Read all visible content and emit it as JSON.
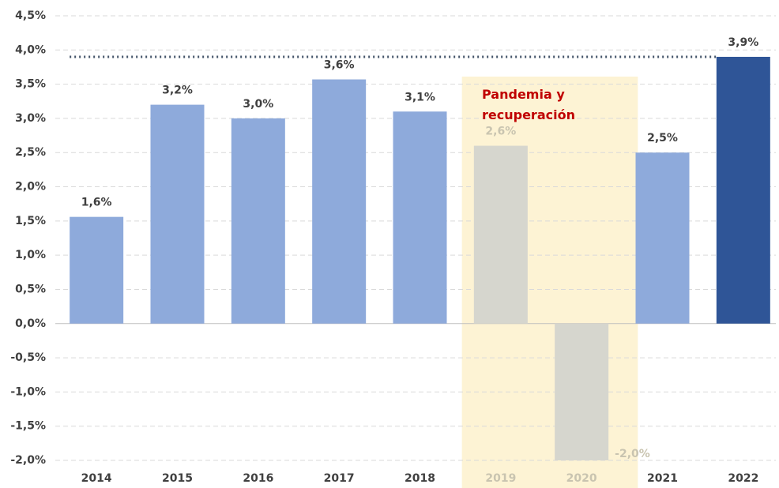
{
  "chart_data": {
    "type": "bar",
    "categories": [
      "2014",
      "2015",
      "2016",
      "2017",
      "2018",
      "2019",
      "2020",
      "2021",
      "2022"
    ],
    "values": [
      1.56,
      3.2,
      3.0,
      3.57,
      3.1,
      2.6,
      -2.0,
      2.5,
      3.9
    ],
    "value_labels": [
      "1,6%",
      "3,2%",
      "3,0%",
      "3,6%",
      "3,1%",
      "2,6%",
      "-2,0%",
      "2,5%",
      "3,9%"
    ],
    "colors": [
      "#8eaadb",
      "#8eaadb",
      "#8eaadb",
      "#8eaadb",
      "#8eaadb",
      "#d6d6ce",
      "#d6d6ce",
      "#8eaadb",
      "#2f5597"
    ],
    "label_colors": [
      "#404040",
      "#404040",
      "#404040",
      "#404040",
      "#404040",
      "#c9c4b0",
      "#c9c4b0",
      "#404040",
      "#404040"
    ],
    "ylim": [
      -2.0,
      4.5
    ],
    "yticks": [
      {
        "value": -2.0,
        "label": "-2,0%"
      },
      {
        "value": -1.5,
        "label": "-1,5%"
      },
      {
        "value": -1.0,
        "label": "-1,0%"
      },
      {
        "value": -0.5,
        "label": "-0,5%"
      },
      {
        "value": 0.0,
        "label": "0,0%"
      },
      {
        "value": 0.5,
        "label": "0,5%"
      },
      {
        "value": 1.0,
        "label": "1,0%"
      },
      {
        "value": 1.5,
        "label": "1,5%"
      },
      {
        "value": 2.0,
        "label": "2,0%"
      },
      {
        "value": 2.5,
        "label": "2,5%"
      },
      {
        "value": 3.0,
        "label": "3,0%"
      },
      {
        "value": 3.5,
        "label": "3,5%"
      },
      {
        "value": 4.0,
        "label": "4,0%"
      },
      {
        "value": 4.5,
        "label": "4,5%"
      }
    ],
    "grid": true,
    "annotation": "Pandemia y recuperación",
    "annotation_color": "#c00000",
    "highlight_color": "#fdf3d4"
  }
}
